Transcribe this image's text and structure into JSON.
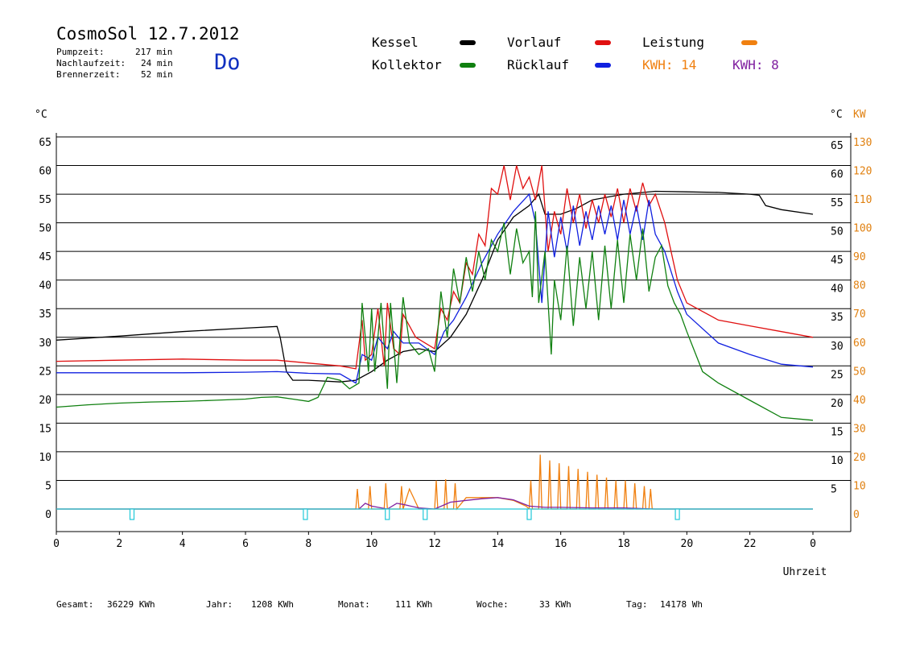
{
  "header": {
    "title": "CosmoSol 12.7.2012",
    "day": "Do",
    "stats": [
      {
        "label": "Pumpzeit:",
        "value": "217 min"
      },
      {
        "label": "Nachlaufzeit:",
        "value": "24 min"
      },
      {
        "label": "Brennerzeit:",
        "value": "52 min"
      }
    ]
  },
  "legend": {
    "items": [
      {
        "label": "Kessel",
        "color": "#000000"
      },
      {
        "label": "Vorlauf",
        "color": "#e01010"
      },
      {
        "label": "Leistung",
        "color": "#f08010"
      },
      {
        "label": "Kollektor",
        "color": "#108010"
      },
      {
        "label": "Rücklauf",
        "color": "#1020e0"
      }
    ],
    "kwh1": "KWH: 14",
    "kwh2": "KWH: 8"
  },
  "footer": {
    "gesamt_label": "Gesamt:",
    "gesamt_value": "36229 KWh",
    "jahr_label": "Jahr:",
    "jahr_value": "1208 KWh",
    "monat_label": "Monat:",
    "monat_value": "111 KWh",
    "woche_label": "Woche:",
    "woche_value": "33 KWh",
    "tag_label": "Tag:",
    "tag_value": "14178 Wh"
  },
  "chart_data": {
    "type": "line",
    "xlabel": "Uhrzeit",
    "x_ticks": [
      "0",
      "2",
      "4",
      "6",
      "8",
      "10",
      "12",
      "14",
      "16",
      "18",
      "20",
      "22",
      "0"
    ],
    "xlim": [
      0,
      24
    ],
    "ylabel_left": "°C",
    "ylabel_right_temp": "°C",
    "ylabel_right_power": "KW",
    "ylim": [
      0,
      65
    ],
    "y_ticks_left": [
      "0",
      "5",
      "10",
      "15",
      "20",
      "25",
      "30",
      "35",
      "40",
      "45",
      "50",
      "55",
      "60",
      "65"
    ],
    "y_ticks_right_temp": [
      "5",
      "10",
      "15",
      "20",
      "25",
      "30",
      "35",
      "40",
      "45",
      "50",
      "55",
      "60",
      "65"
    ],
    "y_ticks_right_power": [
      "0",
      "10",
      "20",
      "30",
      "40",
      "50",
      "60",
      "70",
      "80",
      "90",
      "100",
      "110",
      "120",
      "130"
    ],
    "grid": true,
    "series": [
      {
        "name": "Kessel",
        "color": "#000000",
        "x": [
          0,
          2,
          4,
          6,
          7,
          7.1,
          7.3,
          7.5,
          8,
          9,
          9.5,
          10,
          10.5,
          11,
          11.5,
          12,
          12.5,
          13,
          13.5,
          14,
          14.5,
          15,
          15.3,
          15.5,
          16,
          16.5,
          17,
          18,
          19,
          20,
          21,
          22,
          22.3,
          22.5,
          23,
          24
        ],
        "y": [
          29.5,
          30.2,
          31,
          31.6,
          31.9,
          30,
          24,
          22.5,
          22.5,
          22.2,
          22.5,
          24,
          26,
          27.5,
          28,
          27.5,
          30,
          34,
          40,
          47,
          51,
          53,
          55,
          51.5,
          51.5,
          52.5,
          54,
          55,
          55.5,
          55.4,
          55.3,
          55,
          54.8,
          53,
          52.3,
          51.5
        ]
      },
      {
        "name": "Vorlauf",
        "color": "#e01010",
        "x": [
          0,
          2,
          4,
          6,
          7,
          8,
          9,
          9.5,
          9.7,
          9.8,
          10,
          10.2,
          10.4,
          10.5,
          10.7,
          10.9,
          11,
          11.2,
          11.4,
          11.7,
          12,
          12.2,
          12.4,
          12.6,
          12.8,
          13,
          13.2,
          13.4,
          13.6,
          13.8,
          14,
          14.2,
          14.4,
          14.6,
          14.8,
          15,
          15.2,
          15.4,
          15.6,
          15.8,
          16,
          16.2,
          16.4,
          16.6,
          16.8,
          17,
          17.2,
          17.4,
          17.6,
          17.8,
          18,
          18.2,
          18.4,
          18.6,
          18.8,
          19,
          19.3,
          19.7,
          20,
          21,
          22,
          23,
          24
        ],
        "y": [
          25.8,
          26,
          26.2,
          26,
          26,
          25.5,
          25,
          24.5,
          33,
          26,
          27,
          35,
          25,
          36,
          28,
          27,
          34,
          32,
          30,
          29,
          28,
          35,
          33,
          38,
          36,
          43,
          41,
          48,
          46,
          56,
          55,
          60,
          54,
          60,
          56,
          58,
          54,
          60,
          45,
          52,
          48,
          56,
          50,
          55,
          49,
          54,
          50,
          55,
          51,
          56,
          50,
          56,
          52,
          57,
          53,
          55,
          50,
          40,
          36,
          33,
          32,
          31,
          30
        ]
      },
      {
        "name": "Rücklauf",
        "color": "#1020e0",
        "x": [
          0,
          2,
          4,
          6,
          7,
          8,
          9,
          9.5,
          9.7,
          10,
          10.2,
          10.5,
          10.7,
          11,
          11.5,
          12,
          12.3,
          12.6,
          13,
          13.5,
          14,
          14.5,
          15,
          15.2,
          15.4,
          15.6,
          15.8,
          16,
          16.2,
          16.4,
          16.6,
          16.8,
          17,
          17.2,
          17.4,
          17.6,
          17.8,
          18,
          18.2,
          18.4,
          18.6,
          18.8,
          19,
          19.3,
          19.7,
          20,
          21,
          22,
          23,
          24
        ],
        "y": [
          23.8,
          23.8,
          23.8,
          23.9,
          24,
          23.7,
          23.6,
          22,
          27,
          26,
          30,
          28,
          31,
          29,
          29,
          27,
          31,
          33,
          37,
          43,
          48,
          52,
          55,
          50,
          36,
          52,
          44,
          51,
          45,
          53,
          46,
          52,
          47,
          53,
          48,
          53,
          47,
          54,
          48,
          53,
          47,
          54,
          48,
          45,
          38,
          34,
          29,
          27,
          25.3,
          24.8
        ]
      },
      {
        "name": "Kollektor",
        "color": "#108010",
        "x": [
          0,
          1,
          2,
          3,
          4,
          5,
          6,
          6.5,
          7,
          7.5,
          8,
          8.3,
          8.6,
          9,
          9.3,
          9.6,
          9.7,
          9.9,
          10,
          10.1,
          10.3,
          10.5,
          10.6,
          10.8,
          11,
          11.2,
          11.5,
          11.8,
          12,
          12.2,
          12.4,
          12.6,
          12.8,
          13,
          13.2,
          13.4,
          13.6,
          13.8,
          14,
          14.2,
          14.4,
          14.6,
          14.8,
          15,
          15.1,
          15.2,
          15.3,
          15.5,
          15.7,
          15.8,
          16,
          16.2,
          16.4,
          16.6,
          16.8,
          17,
          17.2,
          17.4,
          17.6,
          17.8,
          18,
          18.2,
          18.4,
          18.6,
          18.8,
          19,
          19.2,
          19.4,
          19.6,
          19.8,
          20,
          20.5,
          21,
          22,
          23,
          24
        ],
        "y": [
          17.8,
          18.2,
          18.5,
          18.7,
          18.8,
          19,
          19.2,
          19.5,
          19.6,
          19.2,
          18.8,
          19.5,
          23,
          22.5,
          21,
          22,
          36,
          24,
          35,
          24,
          36,
          21,
          36,
          22,
          37,
          29,
          27,
          28,
          24,
          38,
          30,
          42,
          36,
          44,
          38,
          45,
          40,
          47,
          45,
          50,
          41,
          49,
          43,
          45,
          37,
          52,
          36,
          45,
          27,
          40,
          33,
          46,
          32,
          44,
          35,
          45,
          33,
          46,
          35,
          47,
          36,
          48,
          40,
          49,
          38,
          44,
          46,
          39,
          36,
          34,
          31,
          24,
          22,
          19,
          16,
          15.5
        ]
      },
      {
        "name": "Leistung",
        "color": "#f08010",
        "x": [
          0,
          9.5,
          9.55,
          9.6,
          9.9,
          9.95,
          10,
          10.4,
          10.45,
          10.5,
          10.9,
          10.95,
          11,
          11.2,
          11.5,
          12,
          12.05,
          12.1,
          12.3,
          12.35,
          12.4,
          12.6,
          12.65,
          12.7,
          13,
          14,
          14.5,
          14.9,
          15,
          15.05,
          15.1,
          15.3,
          15.35,
          15.4,
          15.6,
          15.65,
          15.7,
          15.9,
          15.95,
          16,
          16.2,
          16.25,
          16.3,
          16.5,
          16.55,
          16.6,
          16.8,
          16.85,
          16.9,
          17.1,
          17.15,
          17.2,
          17.4,
          17.45,
          17.5,
          17.7,
          17.75,
          17.8,
          18,
          18.05,
          18.1,
          18.3,
          18.35,
          18.4,
          18.6,
          18.65,
          18.7,
          18.8,
          18.85,
          18.9,
          19,
          24
        ],
        "y": [
          0,
          0,
          3.5,
          0,
          0,
          4,
          0,
          0,
          4.5,
          0,
          0,
          4,
          0,
          3.5,
          0,
          0,
          5,
          0,
          0,
          5.2,
          0,
          0,
          4.5,
          0,
          2,
          2,
          1.5,
          0.5,
          0,
          5,
          0,
          0,
          9.5,
          0,
          0,
          8.5,
          0,
          0,
          8,
          0,
          0,
          7.5,
          0,
          0,
          7,
          0,
          0,
          6.5,
          0,
          0,
          6,
          0,
          0,
          5.5,
          0,
          0,
          5,
          0,
          0,
          5,
          0,
          0,
          4.5,
          0,
          0,
          4,
          0,
          0,
          3.5,
          0,
          0,
          0
        ]
      },
      {
        "name": "Purple",
        "color": "#8020a0",
        "x": [
          0,
          9.6,
          9.8,
          10,
          10.5,
          10.8,
          11,
          11.5,
          12,
          12.5,
          13,
          13.5,
          14,
          14.5,
          15,
          15.5,
          16,
          17,
          18,
          19,
          24
        ],
        "y": [
          0,
          0,
          1,
          0.5,
          0,
          1,
          0.8,
          0.2,
          0,
          1.2,
          1.5,
          1.8,
          2,
          1.6,
          0.5,
          0.3,
          0.3,
          0.2,
          0.2,
          0,
          0
        ]
      },
      {
        "name": "Pumpe",
        "color": "#20c8d8",
        "x": [
          0,
          24
        ],
        "y": [
          0,
          0
        ]
      }
    ],
    "markers_x": [
      2.4,
      7.9,
      10.5,
      11.7,
      15,
      19.7
    ]
  }
}
